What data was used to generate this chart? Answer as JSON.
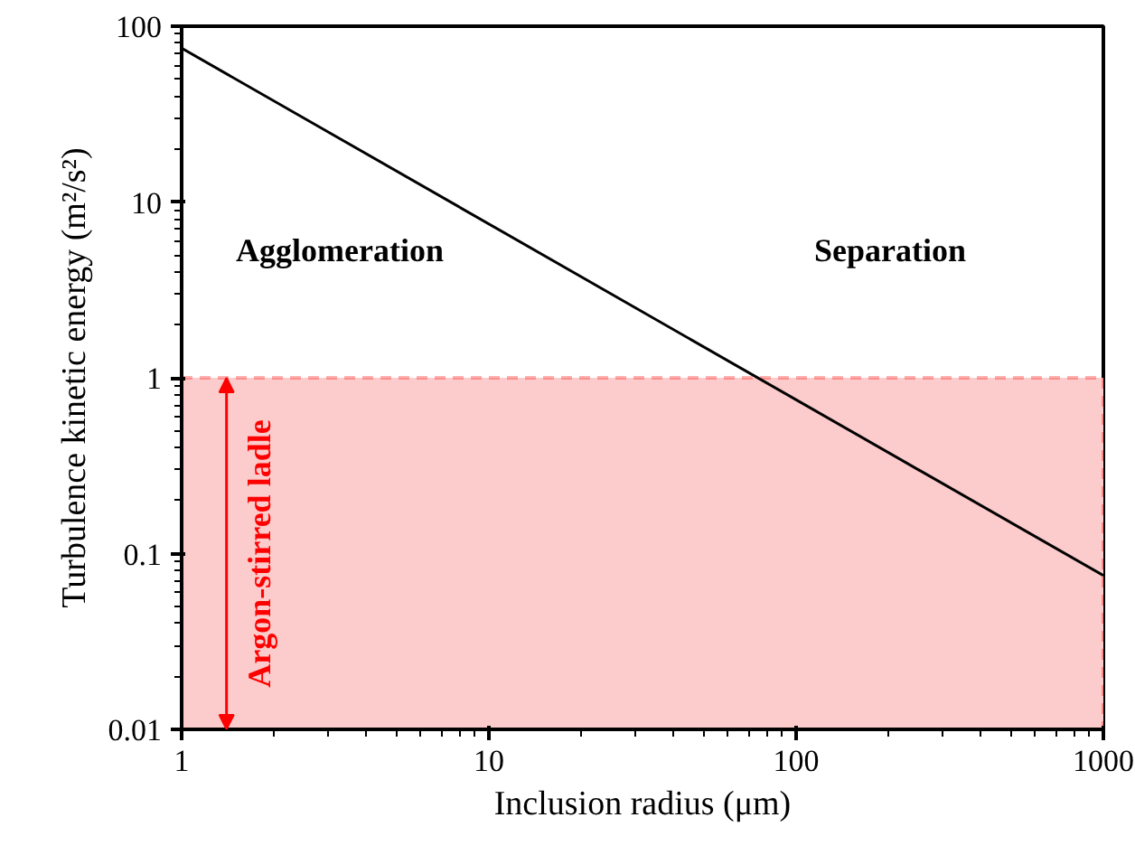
{
  "chart_data": {
    "type": "line",
    "x": [
      1,
      1000
    ],
    "series": [
      {
        "color": "#000000",
        "values": [
          75,
          0.075
        ]
      }
    ],
    "xlabel": "Inclusion radius (μm)",
    "ylabel": "Turbulence kinetic energy (m²/s²)",
    "log": "xy",
    "xlim": [
      1,
      1000
    ],
    "ylim": [
      0.01,
      100
    ],
    "xticks": [
      1,
      10,
      100,
      1000
    ],
    "yticks": [
      0.01,
      0.1,
      1,
      10,
      100
    ],
    "bands": [
      {
        "axis": "y",
        "from": 0.01,
        "to": 1,
        "label": "Argon-stirred ladle",
        "color": "#fccbcb"
      }
    ],
    "annotations": [
      "Agglomeration",
      "Separation"
    ],
    "grid": false,
    "marker": "none",
    "line_style": "solid"
  }
}
